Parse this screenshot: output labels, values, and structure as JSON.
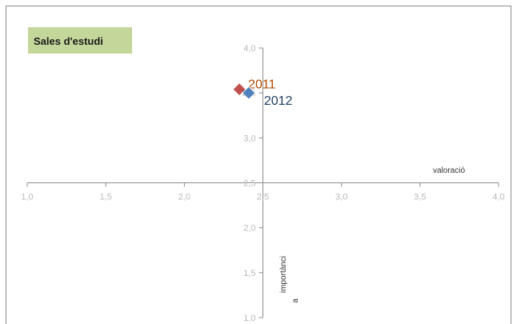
{
  "chart_data": {
    "type": "scatter",
    "title": "Sales d'estudi",
    "title_box_color": "#c4d79b",
    "xlabel": "valoració",
    "ylabel_lines": [
      "importànci",
      "a"
    ],
    "xlim": [
      1.0,
      4.0
    ],
    "ylim": [
      1.0,
      4.0
    ],
    "x_crosses_at": 2.5,
    "y_crosses_at": 2.5,
    "x_ticks": [
      "1,0",
      "1,5",
      "2,0",
      "2,5",
      "3,0",
      "3,5",
      "4,0"
    ],
    "y_ticks": [
      "1,0",
      "1,5",
      "2,0",
      "2,5",
      "3,0",
      "3,5",
      "4,0"
    ],
    "x_tick_values": [
      1.0,
      1.5,
      2.0,
      2.5,
      3.0,
      3.5,
      4.0
    ],
    "y_tick_values": [
      1.0,
      1.5,
      2.0,
      2.5,
      3.0,
      3.5,
      4.0
    ],
    "grid": false,
    "legend": "none",
    "series": [
      {
        "name": "2011",
        "points": [
          {
            "x": 2.35,
            "y": 3.54
          }
        ],
        "color": "#c0504d",
        "label_color": "#b34700",
        "marker": "diamond",
        "point_label": "3,5"
      },
      {
        "name": "2012",
        "points": [
          {
            "x": 2.41,
            "y": 3.5
          }
        ],
        "color": "#4f81bd",
        "label_color": "#1f3f66",
        "marker": "diamond",
        "point_label": ""
      }
    ]
  }
}
